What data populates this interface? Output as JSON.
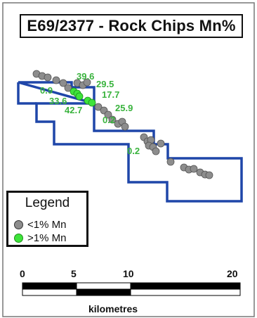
{
  "title": "E69/2377 - Rock Chips Mn%",
  "legend": {
    "title": "Legend",
    "low": {
      "label": "<1% Mn",
      "color": "#8d8d8d"
    },
    "high": {
      "label": ">1% Mn",
      "color": "#3ee43a"
    }
  },
  "labels": [
    "39.6",
    "29.5",
    "0.9",
    "17.7",
    "33.6",
    "42.7",
    "25.9",
    "0.2",
    "0.2"
  ],
  "scale": {
    "ticks": [
      "0",
      "5",
      "10",
      "20"
    ],
    "unit": "kilometres"
  },
  "colors": {
    "tenement": "#1f46a9",
    "label": "#39b33d"
  }
}
